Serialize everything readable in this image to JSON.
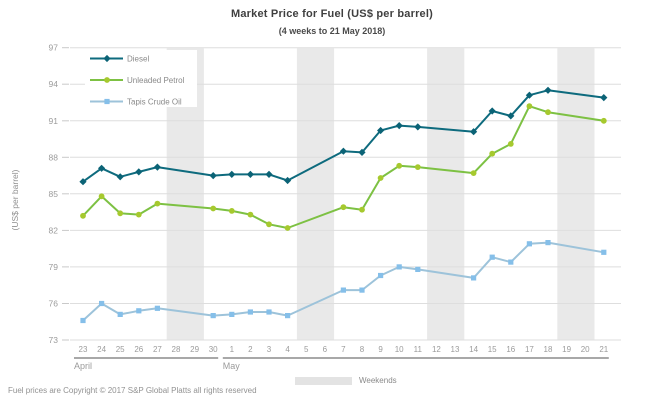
{
  "title": "Market Price for Fuel (US$ per barrel)",
  "subtitle": "(4 weeks to 21 May 2018)",
  "y_axis_title": "(US$ per barrel)",
  "weekend_legend_label": "Weekends",
  "footer": "Fuel prices are Copyright © 2017 S&P Global Platts all rights reserved",
  "colors": {
    "diesel_line": "#0e6b7e",
    "diesel_marker": "#0b6376",
    "petrol_line": "#7dc143",
    "petrol_marker": "#a6c92e",
    "tapis_line": "#9dc3da",
    "tapis_marker": "#85bfe9",
    "gridline": "#dedede",
    "tick": "#c9c9c9",
    "weekend_band": "#e9e9e9",
    "axis_text": "#9b9b9b",
    "month_line": "#8c8c8c",
    "legend_text": "#8a8a8a"
  },
  "chart_data": {
    "type": "line",
    "title": "Market Price for Fuel (US$ per barrel)",
    "subtitle": "(4 weeks to 21 May 2018)",
    "ylabel": "(US$ per barrel)",
    "ylim": [
      73,
      97
    ],
    "yticks": [
      73,
      76,
      79,
      82,
      85,
      88,
      91,
      94,
      97
    ],
    "grid": true,
    "legend_position": "top-left",
    "x_labels": [
      "23",
      "24",
      "25",
      "26",
      "27",
      "28",
      "29",
      "30",
      "1",
      "2",
      "3",
      "4",
      "5",
      "6",
      "7",
      "8",
      "9",
      "10",
      "11",
      "12",
      "13",
      "14",
      "15",
      "16",
      "17",
      "18",
      "19",
      "20",
      "21"
    ],
    "months": [
      {
        "label": "April",
        "start_index": 0,
        "end_index": 7
      },
      {
        "label": "May",
        "start_index": 8,
        "end_index": 28
      }
    ],
    "weekend_day_indices": [
      [
        5,
        6
      ],
      [
        12,
        13
      ],
      [
        19,
        20
      ],
      [
        26,
        27
      ]
    ],
    "series": [
      {
        "name": "Diesel",
        "marker": "diamond",
        "day_indices": [
          0,
          1,
          2,
          3,
          4,
          7,
          8,
          9,
          10,
          11,
          14,
          15,
          16,
          17,
          18,
          21,
          22,
          23,
          24,
          25,
          28
        ],
        "values": [
          86.0,
          87.1,
          86.4,
          86.8,
          87.2,
          86.5,
          86.6,
          86.6,
          86.6,
          86.1,
          88.5,
          88.4,
          90.2,
          90.6,
          90.5,
          90.1,
          91.8,
          91.4,
          93.1,
          93.5,
          92.9
        ]
      },
      {
        "name": "Unleaded Petrol",
        "marker": "circle",
        "day_indices": [
          0,
          1,
          2,
          3,
          4,
          7,
          8,
          9,
          10,
          11,
          14,
          15,
          16,
          17,
          18,
          21,
          22,
          23,
          24,
          25,
          28
        ],
        "values": [
          83.2,
          84.8,
          83.4,
          83.3,
          84.2,
          83.8,
          83.6,
          83.3,
          82.5,
          82.2,
          83.9,
          83.7,
          86.3,
          87.3,
          87.2,
          86.7,
          88.3,
          89.1,
          92.2,
          91.7,
          91.0
        ]
      },
      {
        "name": "Tapis Crude Oil",
        "marker": "square",
        "day_indices": [
          0,
          1,
          2,
          3,
          4,
          7,
          8,
          9,
          10,
          11,
          14,
          15,
          16,
          17,
          18,
          21,
          22,
          23,
          24,
          25,
          28
        ],
        "values": [
          74.6,
          76.0,
          75.1,
          75.4,
          75.6,
          75.0,
          75.1,
          75.3,
          75.3,
          75.0,
          77.1,
          77.1,
          78.3,
          79.0,
          78.8,
          78.1,
          79.8,
          79.4,
          80.9,
          81.0,
          80.2
        ]
      }
    ]
  }
}
